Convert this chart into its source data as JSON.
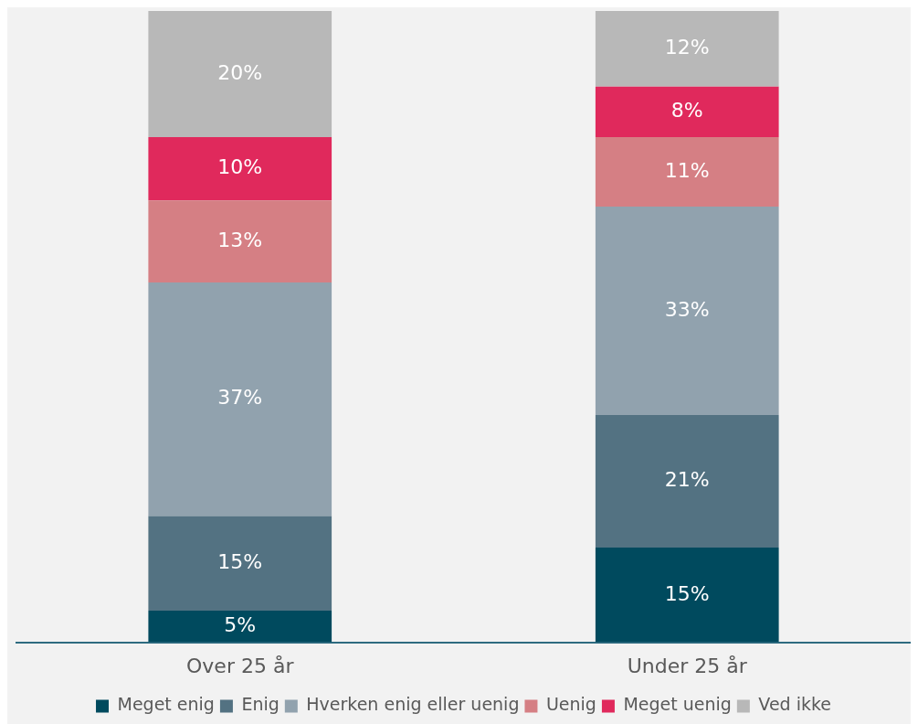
{
  "chart_data": {
    "type": "bar",
    "stacked": true,
    "categories": [
      "Over 25 år",
      "Under 25 år"
    ],
    "series": [
      {
        "name": "Meget enig",
        "color": "#004a5e",
        "values": [
          5,
          15
        ],
        "value_labels": [
          "5%",
          "15%"
        ]
      },
      {
        "name": "Enig",
        "color": "#537282",
        "values": [
          15,
          21
        ],
        "value_labels": [
          "15%",
          "21%"
        ]
      },
      {
        "name": "Hverken enig eller uenig",
        "color": "#91a2ae",
        "values": [
          37,
          33
        ],
        "value_labels": [
          "37%",
          "33%"
        ]
      },
      {
        "name": "Uenig",
        "color": "#d57f84",
        "values": [
          13,
          11
        ],
        "value_labels": [
          "13%",
          "11%"
        ]
      },
      {
        "name": "Meget uenig",
        "color": "#e0295c",
        "values": [
          10,
          8
        ],
        "value_labels": [
          "10%",
          "8%"
        ]
      },
      {
        "name": "Ved ikke",
        "color": "#b8b8b8",
        "values": [
          20,
          12
        ],
        "value_labels": [
          "20%",
          "12%"
        ]
      }
    ],
    "tick_labels": "x",
    "grid": false,
    "legend": "bottom"
  }
}
